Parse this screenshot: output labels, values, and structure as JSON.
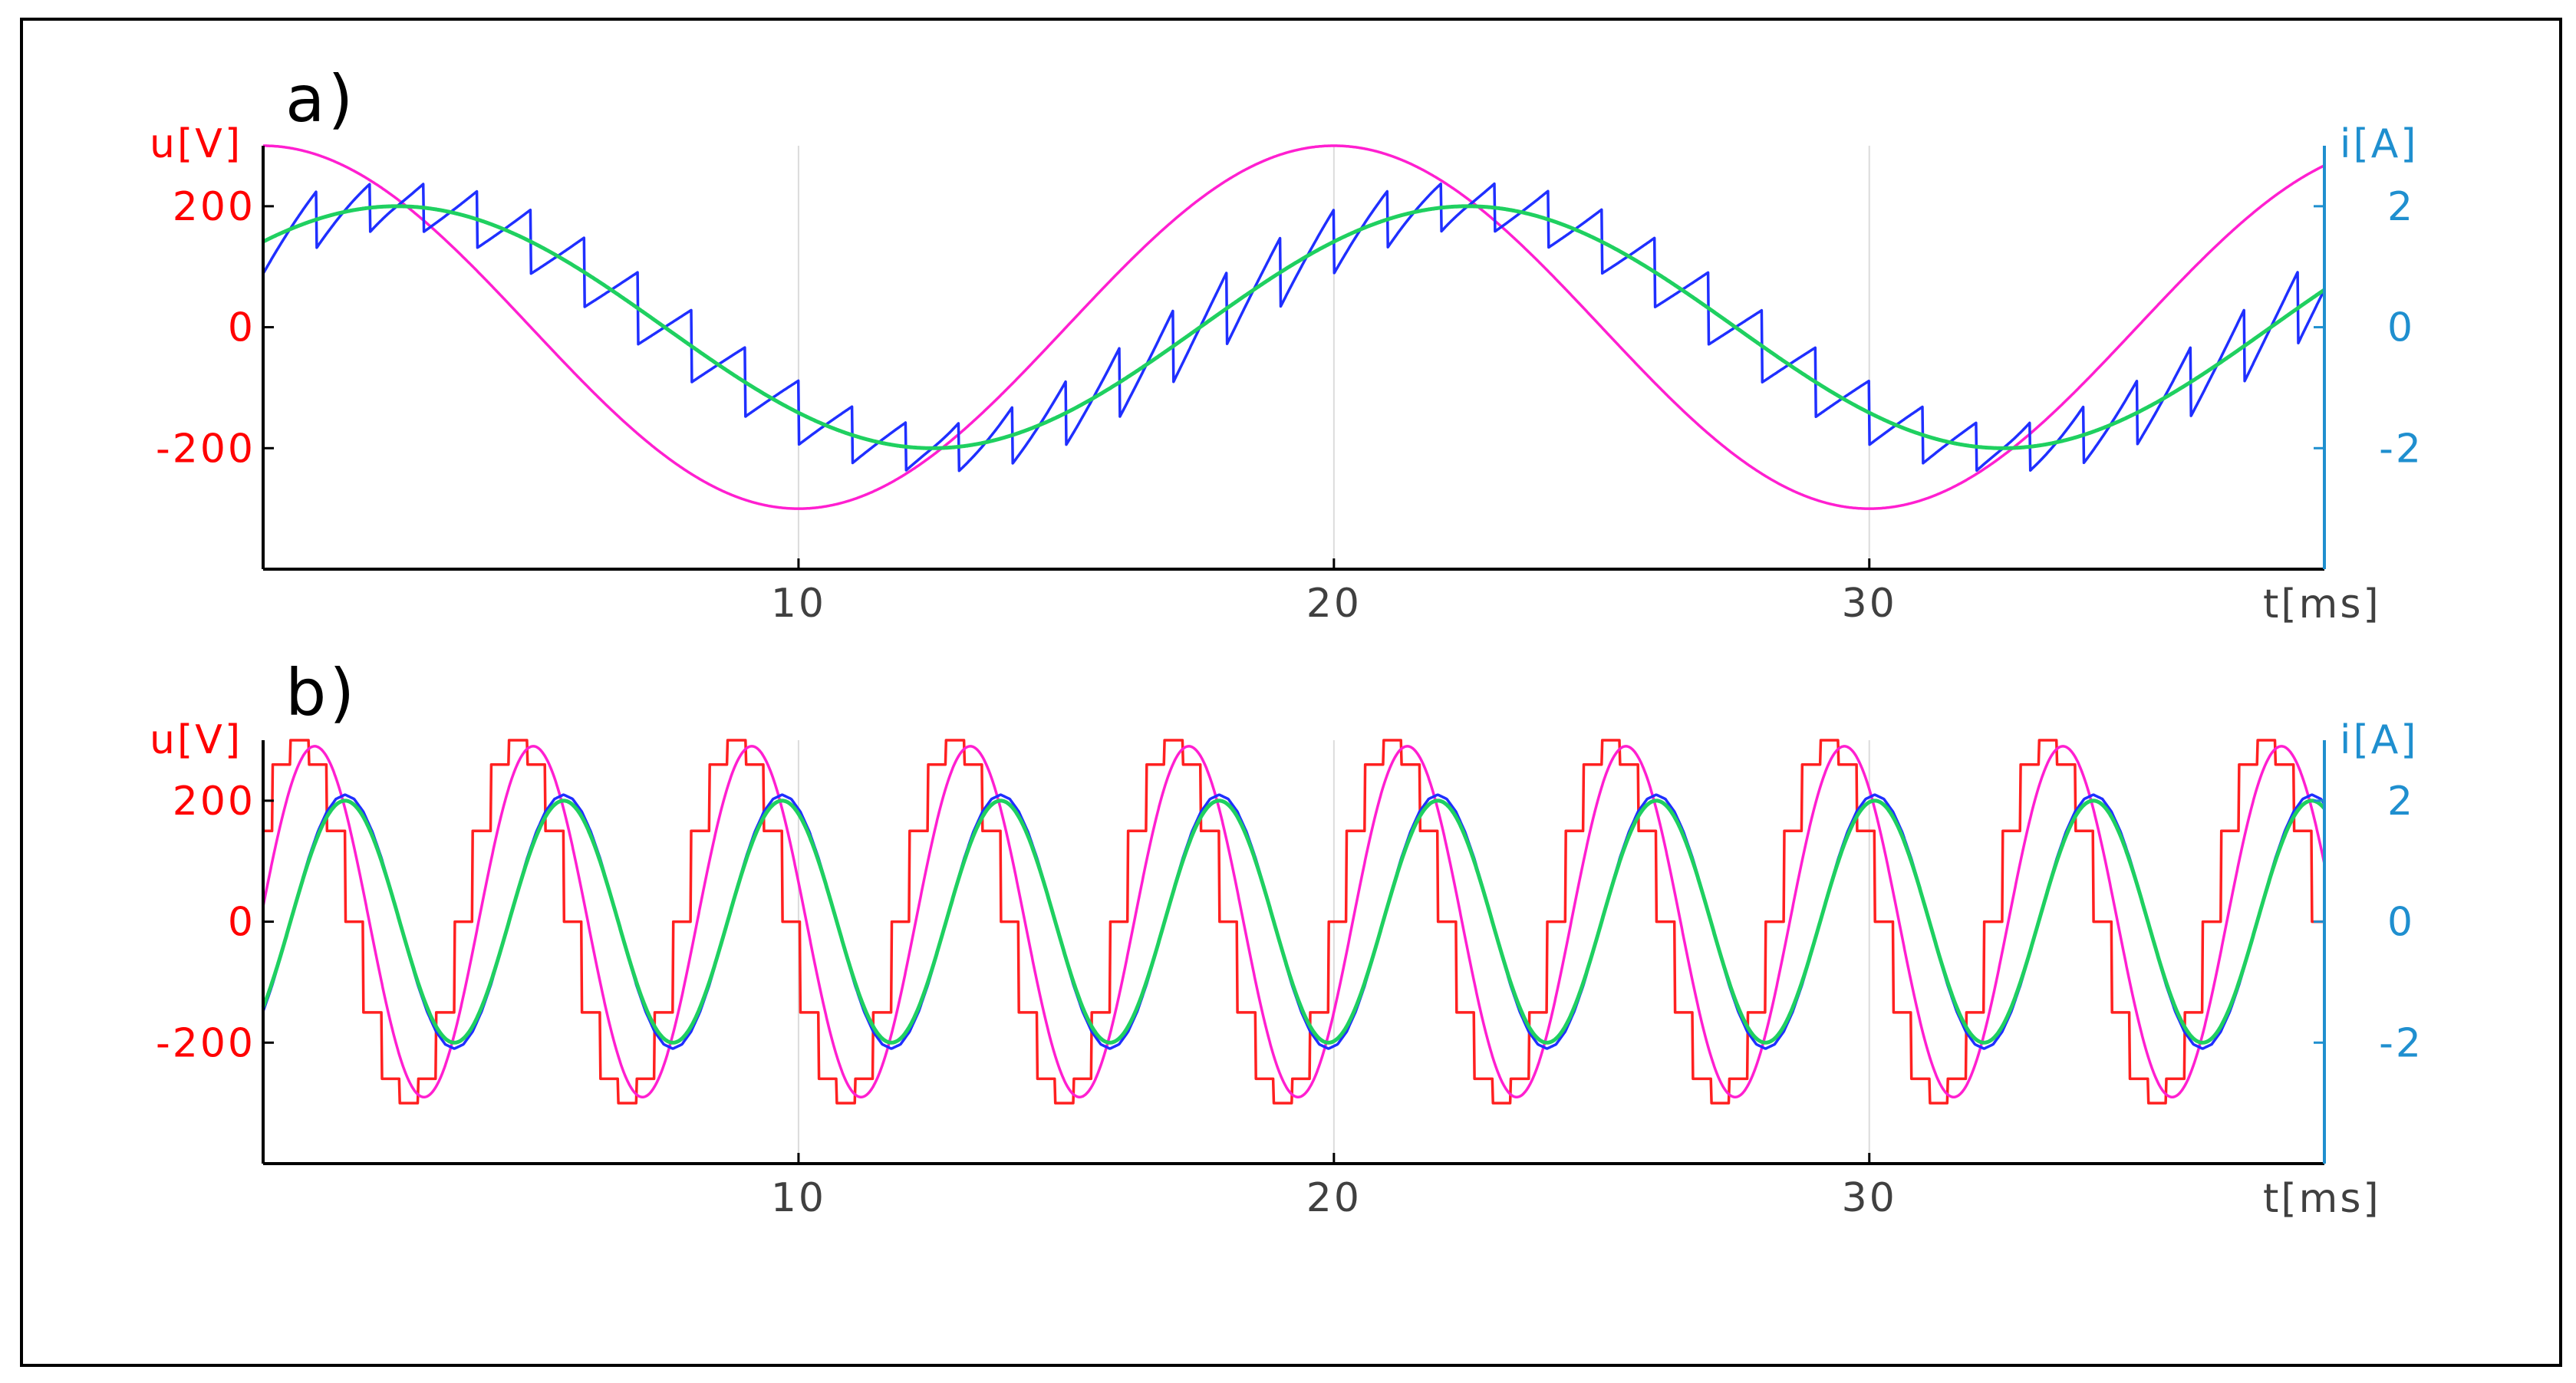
{
  "colors": {
    "voltage_axis": "#ff0000",
    "current_axis": "#1f8fcf",
    "u_sine": "#ff1fd0",
    "u_staircase": "#ff2020",
    "i_ripple": "#1f2fff",
    "i_fundamental": "#1fd060",
    "axes": "#000000",
    "grid": "#dcdcdc"
  },
  "chart_data": [
    {
      "panel_label": "a)",
      "type": "line",
      "title": "",
      "xlabel": "t[ms]",
      "ylabel_left": "u[V]",
      "ylabel_right": "i[A]",
      "xlim": [
        0,
        38.5
      ],
      "ylim_left": [
        -400,
        300
      ],
      "ylim_right": [
        -4,
        3
      ],
      "x_ticks": [
        10,
        20,
        30
      ],
      "y_ticks_left": [
        200,
        0,
        -200
      ],
      "y_ticks_right": [
        2,
        0,
        -2
      ],
      "grid": true,
      "series": [
        {
          "color_key": "u_sine",
          "axis": "left",
          "kind": "sine",
          "amplitude": 300,
          "freq_hz": 50,
          "phase_deg": 90
        },
        {
          "color_key": "i_ripple",
          "axis": "right",
          "kind": "pwm_ripple",
          "amplitude": 2,
          "freq_hz": 50,
          "phase_deg": 45,
          "ripple": 0.6,
          "switch_freq_hz": 1000
        },
        {
          "color_key": "i_fundamental",
          "axis": "right",
          "kind": "sine",
          "amplitude": 2,
          "freq_hz": 50,
          "phase_deg": 45
        }
      ]
    },
    {
      "panel_label": "b)",
      "type": "line",
      "title": "",
      "xlabel": "t[ms]",
      "ylabel_left": "u[V]",
      "ylabel_right": "i[A]",
      "xlim": [
        0,
        38.5
      ],
      "ylim_left": [
        -400,
        300
      ],
      "ylim_right": [
        -4,
        3
      ],
      "x_ticks": [
        10,
        20,
        30
      ],
      "y_ticks_left": [
        200,
        0,
        -200
      ],
      "y_ticks_right": [
        2,
        0,
        -2
      ],
      "grid": true,
      "series": [
        {
          "color_key": "u_staircase",
          "axis": "left",
          "kind": "staircase",
          "amplitude": 300,
          "freq_hz": 245,
          "phase_deg": 30
        },
        {
          "color_key": "u_sine",
          "axis": "left",
          "kind": "sine",
          "amplitude": 290,
          "freq_hz": 245,
          "phase_deg": 5
        },
        {
          "color_key": "i_ripple",
          "axis": "right",
          "kind": "stepped",
          "amplitude": 2.1,
          "freq_hz": 245,
          "phase_deg": -45
        },
        {
          "color_key": "i_fundamental",
          "axis": "right",
          "kind": "sine",
          "amplitude": 2,
          "freq_hz": 245,
          "phase_deg": -45
        }
      ]
    }
  ]
}
